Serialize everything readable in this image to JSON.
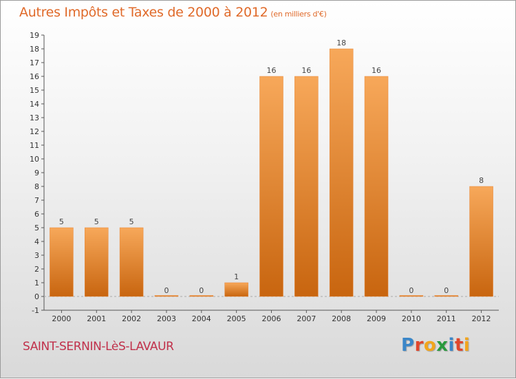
{
  "chart_data": {
    "type": "bar",
    "title": "Autres Impôts et Taxes de 2000 à 2012",
    "unit_label": "(en milliers d'€)",
    "categories": [
      "2000",
      "2001",
      "2002",
      "2003",
      "2004",
      "2005",
      "2006",
      "2007",
      "2008",
      "2009",
      "2010",
      "2011",
      "2012"
    ],
    "values": [
      5,
      5,
      5,
      0,
      0,
      1,
      16,
      16,
      18,
      16,
      0,
      0,
      8
    ],
    "data_labels": [
      "5",
      "5",
      "5",
      "0",
      "0",
      "1",
      "16",
      "16",
      "18",
      "16",
      "0",
      "0",
      "8"
    ],
    "ylim": [
      -1,
      19
    ],
    "yticks": [
      "-1",
      "0",
      "1",
      "2",
      "3",
      "4",
      "5",
      "6",
      "7",
      "8",
      "9",
      "10",
      "11",
      "12",
      "13",
      "14",
      "15",
      "16",
      "17",
      "18",
      "19"
    ],
    "xlabel": "",
    "ylabel": "",
    "grid": false,
    "bar_color_light": "#f7a85a",
    "bar_color_dark": "#c8650f"
  },
  "commune": "SAINT-SERNIN-LèS-LAVAUR",
  "brand": {
    "letters": [
      "P",
      "r",
      "o",
      "x",
      "i",
      "t",
      "i"
    ],
    "colors": [
      "#3a86c8",
      "#e0462c",
      "#f2a51c",
      "#2a9a3e",
      "#3a86c8",
      "#e0462c",
      "#f2a51c"
    ]
  }
}
